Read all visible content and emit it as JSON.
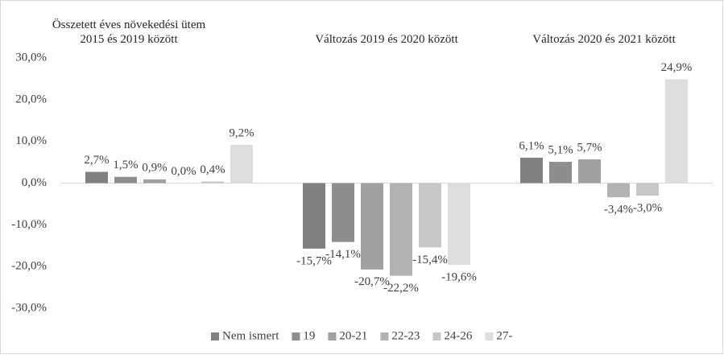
{
  "chart_data": {
    "type": "bar",
    "categories": [
      "Összetett éves növekedési ütem 2015 és 2019 között",
      "Változás 2019 és 2020 között",
      "Változás 2020 és 2021 között"
    ],
    "series": [
      {
        "name": "Nem ismert",
        "color": "#808080",
        "values": [
          2.7,
          -15.7,
          6.1
        ],
        "value_labels": [
          "2,7%",
          "-15,7%",
          "6,1%"
        ]
      },
      {
        "name": "19",
        "color": "#8e8e8e",
        "values": [
          1.5,
          -14.1,
          5.1
        ],
        "value_labels": [
          "1,5%",
          "-14,1%",
          "5,1%"
        ]
      },
      {
        "name": "20-21",
        "color": "#a0a0a0",
        "values": [
          0.9,
          -20.7,
          5.7
        ],
        "value_labels": [
          "0,9%",
          "-20,7%",
          "5,7%"
        ]
      },
      {
        "name": "22-23",
        "color": "#b2b2b2",
        "values": [
          0.0,
          -22.2,
          -3.4
        ],
        "value_labels": [
          "0,0%",
          "-22,2%",
          "-3,4%"
        ]
      },
      {
        "name": "24-26",
        "color": "#c8c8c8",
        "values": [
          0.4,
          -15.4,
          -3.0
        ],
        "value_labels": [
          "0,4%",
          "-15,4%",
          "-3,0%"
        ]
      },
      {
        "name": "27-",
        "color": "#dddddd",
        "values": [
          9.2,
          -19.6,
          24.9
        ],
        "value_labels": [
          "9,2%",
          "-19,6%",
          "24,9%"
        ]
      }
    ],
    "ylim": [
      -30,
      30
    ],
    "yticks": [
      {
        "value": 30,
        "label": "30,0%"
      },
      {
        "value": 20,
        "label": "20,0%"
      },
      {
        "value": 10,
        "label": "10,0%"
      },
      {
        "value": 0,
        "label": "0,0%"
      },
      {
        "value": -10,
        "label": "-10,0%"
      },
      {
        "value": -20,
        "label": "-20,0%"
      },
      {
        "value": -30,
        "label": "-30,0%"
      }
    ],
    "legend": "bottom"
  }
}
